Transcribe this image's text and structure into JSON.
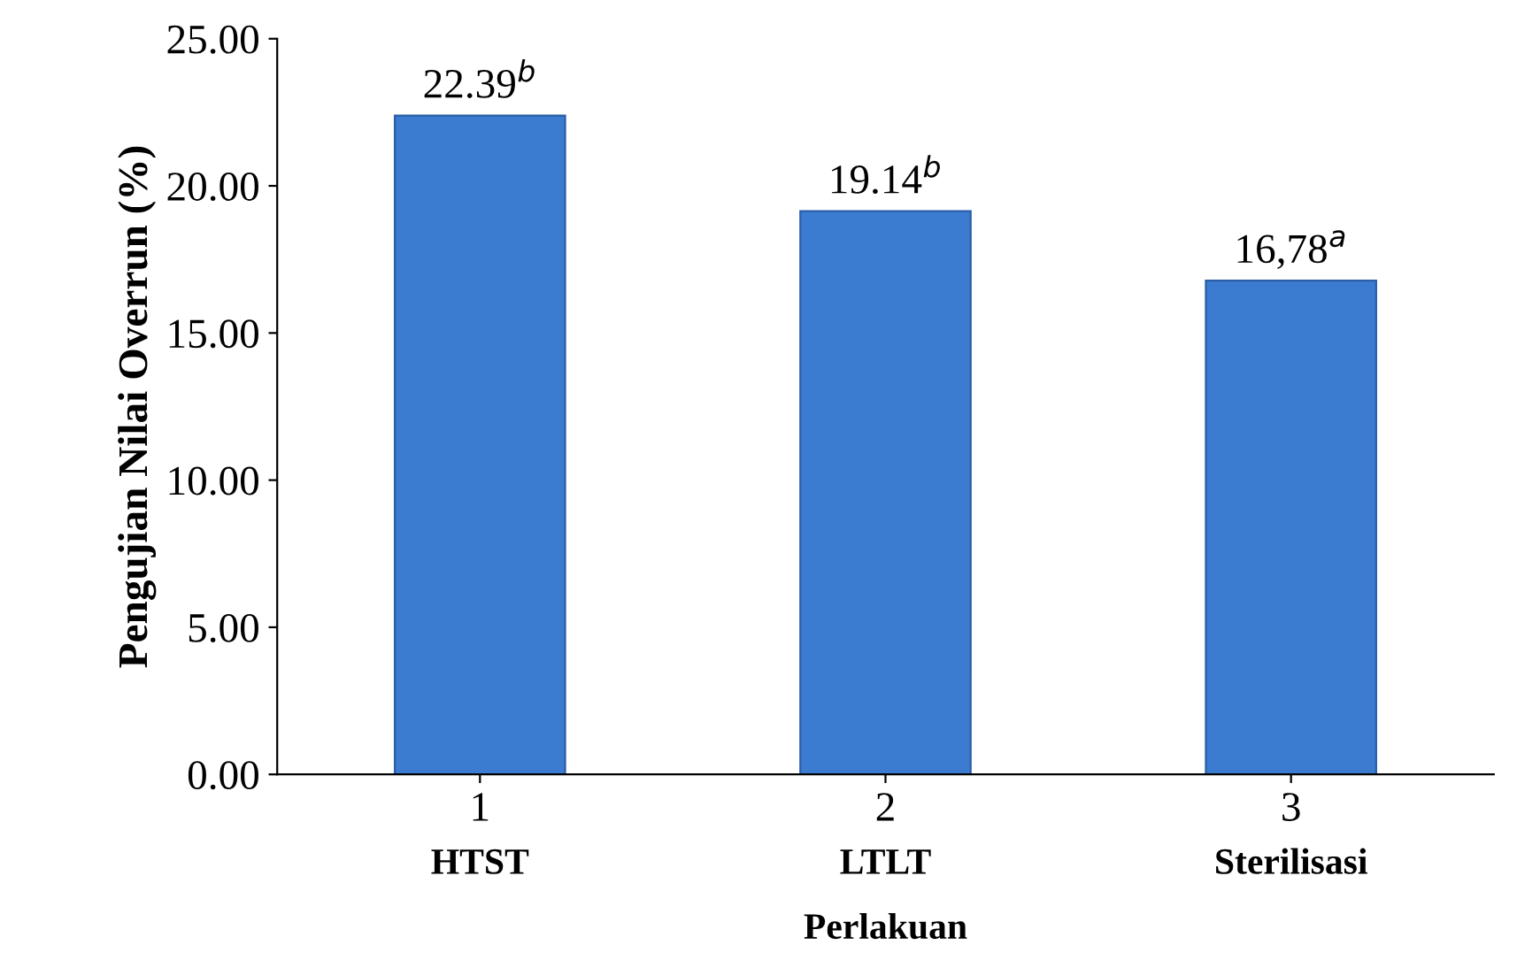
{
  "chart_data": {
    "type": "bar",
    "categories": [
      "1",
      "2",
      "3"
    ],
    "values": [
      22.39,
      19.14,
      16.78
    ],
    "color": "#3b7bd0",
    "value_labels": [
      "22.39$^{b}$",
      "19.14$^{b}$",
      "16,78$^{a}$"
    ],
    "xlabel": "Perlakuan",
    "ylabel": "Pengujian Nilai Overrun (%)",
    "ylim": [
      0,
      25
    ],
    "yticks": [
      {
        "value": 0,
        "label": "0.00"
      },
      {
        "value": 5,
        "label": "5.00"
      },
      {
        "value": 10,
        "label": "10.00"
      },
      {
        "value": 15,
        "label": "15.00"
      },
      {
        "value": 20,
        "label": "20.00"
      },
      {
        "value": 25,
        "label": "25.00"
      }
    ],
    "annotations": [
      "HTST",
      "LTLT",
      "Sterilisasi"
    ],
    "grid": false,
    "legend": false
  }
}
